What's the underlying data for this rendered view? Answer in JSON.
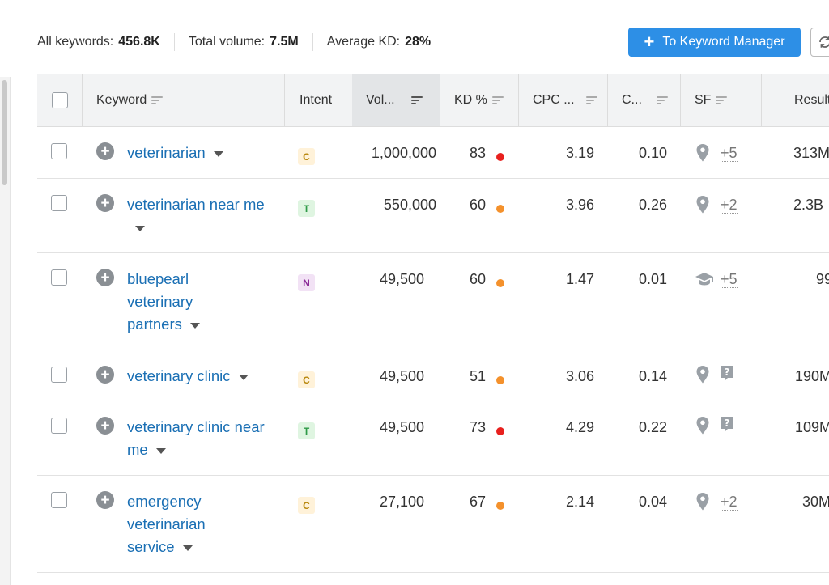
{
  "summary": {
    "all_keywords_label": "All keywords:",
    "all_keywords_value": "456.8K",
    "total_volume_label": "Total volume:",
    "total_volume_value": "7.5M",
    "avg_kd_label": "Average KD:",
    "avg_kd_value": "28%"
  },
  "toolbar": {
    "keyword_manager_label": "To Keyword Manager",
    "refresh_icon": "refresh-icon"
  },
  "columns": {
    "keyword": "Keyword",
    "intent": "Intent",
    "volume": "Vol...",
    "kd": "KD %",
    "cpc": "CPC ...",
    "com": "C...",
    "sf": "SF",
    "results": "Result"
  },
  "colors": {
    "accent": "#2d8fe6",
    "kd_red": "#e8201e",
    "kd_orange": "#f4912c",
    "link": "#1a6fb4"
  },
  "rows": [
    {
      "keyword": "veterinarian",
      "intent": "C",
      "volume": "1,000,000",
      "kd": "83",
      "kd_color": "red",
      "cpc": "3.19",
      "com": "0.10",
      "sf_icon": "map-pin-icon",
      "sf_more": "+5",
      "results": "313M"
    },
    {
      "keyword": "veterinarian near me",
      "intent": "T",
      "volume": "550,000",
      "kd": "60",
      "kd_color": "orange",
      "cpc": "3.96",
      "com": "0.26",
      "sf_icon": "map-pin-icon",
      "sf_more": "+2",
      "results": "2.3B"
    },
    {
      "keyword": "bluepearl veterinary partners",
      "intent": "N",
      "volume": "49,500",
      "kd": "60",
      "kd_color": "orange",
      "cpc": "1.47",
      "com": "0.01",
      "sf_icon": "graduation-cap-icon",
      "sf_more": "+5",
      "results": "99"
    },
    {
      "keyword": "veterinary clinic",
      "intent": "C",
      "volume": "49,500",
      "kd": "51",
      "kd_color": "orange",
      "cpc": "3.06",
      "com": "0.14",
      "sf_icon": "map-pin-icon",
      "sf_icon2": "question-bubble-icon",
      "sf_more": "",
      "results": "190M"
    },
    {
      "keyword": "veterinary clinic near me",
      "intent": "T",
      "volume": "49,500",
      "kd": "73",
      "kd_color": "red",
      "cpc": "4.29",
      "com": "0.22",
      "sf_icon": "map-pin-icon",
      "sf_icon2": "question-bubble-icon",
      "sf_more": "",
      "results": "109M"
    },
    {
      "keyword": "emergency veterinarian service",
      "intent": "C",
      "volume": "27,100",
      "kd": "67",
      "kd_color": "orange",
      "cpc": "2.14",
      "com": "0.04",
      "sf_icon": "map-pin-icon",
      "sf_more": "+2",
      "results": "30M"
    }
  ]
}
